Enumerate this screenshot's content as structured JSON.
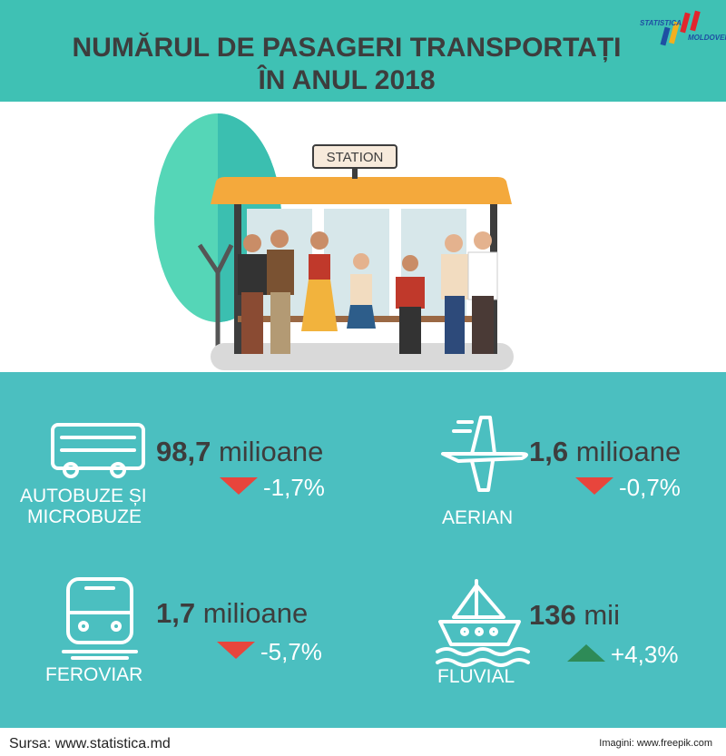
{
  "header": {
    "title_lines": [
      "NUMĂRUL DE PASAGERI TRANSPORTAȚI",
      "ÎN ANUL 2018"
    ],
    "logo": [
      "STATISTICA",
      "MOLDOVEI"
    ]
  },
  "illustration": {
    "sign": "STATION"
  },
  "items": [
    {
      "value": "98,7",
      "unit": "milioane",
      "change": "-1,7%",
      "trend": "down",
      "label": [
        "AUTOBUZE ȘI",
        "MICROBUZE"
      ]
    },
    {
      "value": "1,6",
      "unit": "milioane",
      "change": "-0,7%",
      "trend": "down",
      "label": [
        "AERIAN"
      ]
    },
    {
      "value": "1,7",
      "unit": "milioane",
      "change": "-5,7%",
      "trend": "down",
      "label": [
        "FEROVIAR"
      ]
    },
    {
      "value": "136",
      "unit": "mii",
      "change": "+4,3%",
      "trend": "up",
      "label": [
        "FLUVIAL"
      ]
    }
  ],
  "footer": {
    "source": "Sursa: www.statistica.md",
    "images": "Imagini: www.freepik.com"
  }
}
